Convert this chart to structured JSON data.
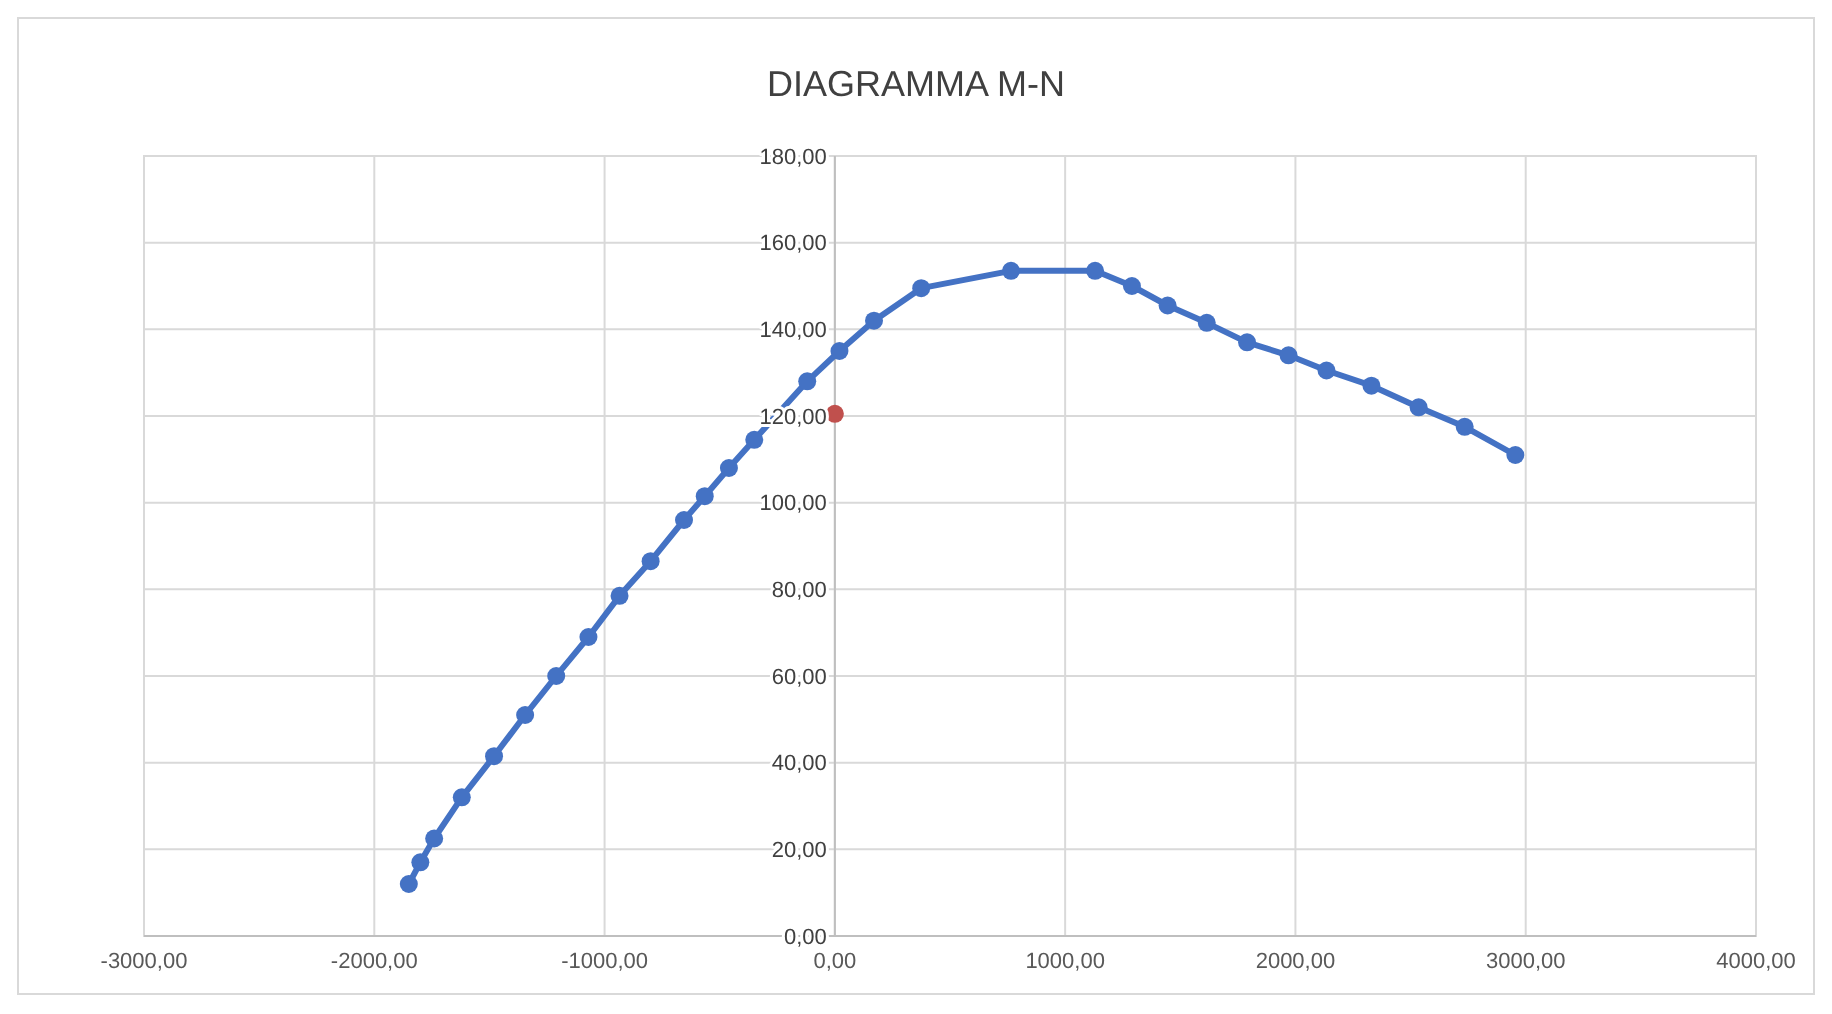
{
  "chart_data": {
    "type": "line",
    "title": "DIAGRAMMA M-N",
    "grid": true,
    "marker": "circle",
    "line_style": "solid",
    "xlim": [
      -3000,
      4000
    ],
    "ylim": [
      0,
      180
    ],
    "xticks": [
      {
        "value": -3000,
        "label": "-3000,00"
      },
      {
        "value": -2000,
        "label": "-2000,00"
      },
      {
        "value": -1000,
        "label": "-1000,00"
      },
      {
        "value": 0,
        "label": "0,00"
      },
      {
        "value": 1000,
        "label": "1000,00"
      },
      {
        "value": 2000,
        "label": "2000,00"
      },
      {
        "value": 3000,
        "label": "3000,00"
      },
      {
        "value": 4000,
        "label": "4000,00"
      }
    ],
    "yticks": [
      {
        "value": 0,
        "label": "0,00"
      },
      {
        "value": 20,
        "label": "20,00"
      },
      {
        "value": 40,
        "label": "40,00"
      },
      {
        "value": 60,
        "label": "60,00"
      },
      {
        "value": 80,
        "label": "80,00"
      },
      {
        "value": 100,
        "label": "100,00"
      },
      {
        "value": 120,
        "label": "120,00"
      },
      {
        "value": 140,
        "label": "140,00"
      },
      {
        "value": 160,
        "label": "160,00"
      },
      {
        "value": 180,
        "label": "180,00"
      }
    ],
    "series": [
      {
        "color": "#4472c4",
        "x": [
          -1850,
          -1800,
          -1740,
          -1620,
          -1480,
          -1345,
          -1210,
          -1070,
          -935,
          -800,
          -655,
          -565,
          -460,
          -350,
          -120,
          20,
          170,
          375,
          765,
          1130,
          1290,
          1445,
          1615,
          1790,
          1970,
          2135,
          2330,
          2535,
          2735,
          2955
        ],
        "values": [
          12,
          17,
          22.5,
          32,
          41.5,
          51,
          60,
          69,
          78.5,
          86.5,
          96,
          101.5,
          108,
          114.5,
          128,
          135,
          142,
          149.5,
          153.5,
          153.5,
          150,
          145.5,
          141.5,
          137,
          134,
          130.5,
          127,
          122,
          117.5,
          111
        ]
      },
      {
        "type": "scatter",
        "color": "#c0504d",
        "x": [
          0
        ],
        "values": [
          120.5
        ]
      }
    ]
  }
}
